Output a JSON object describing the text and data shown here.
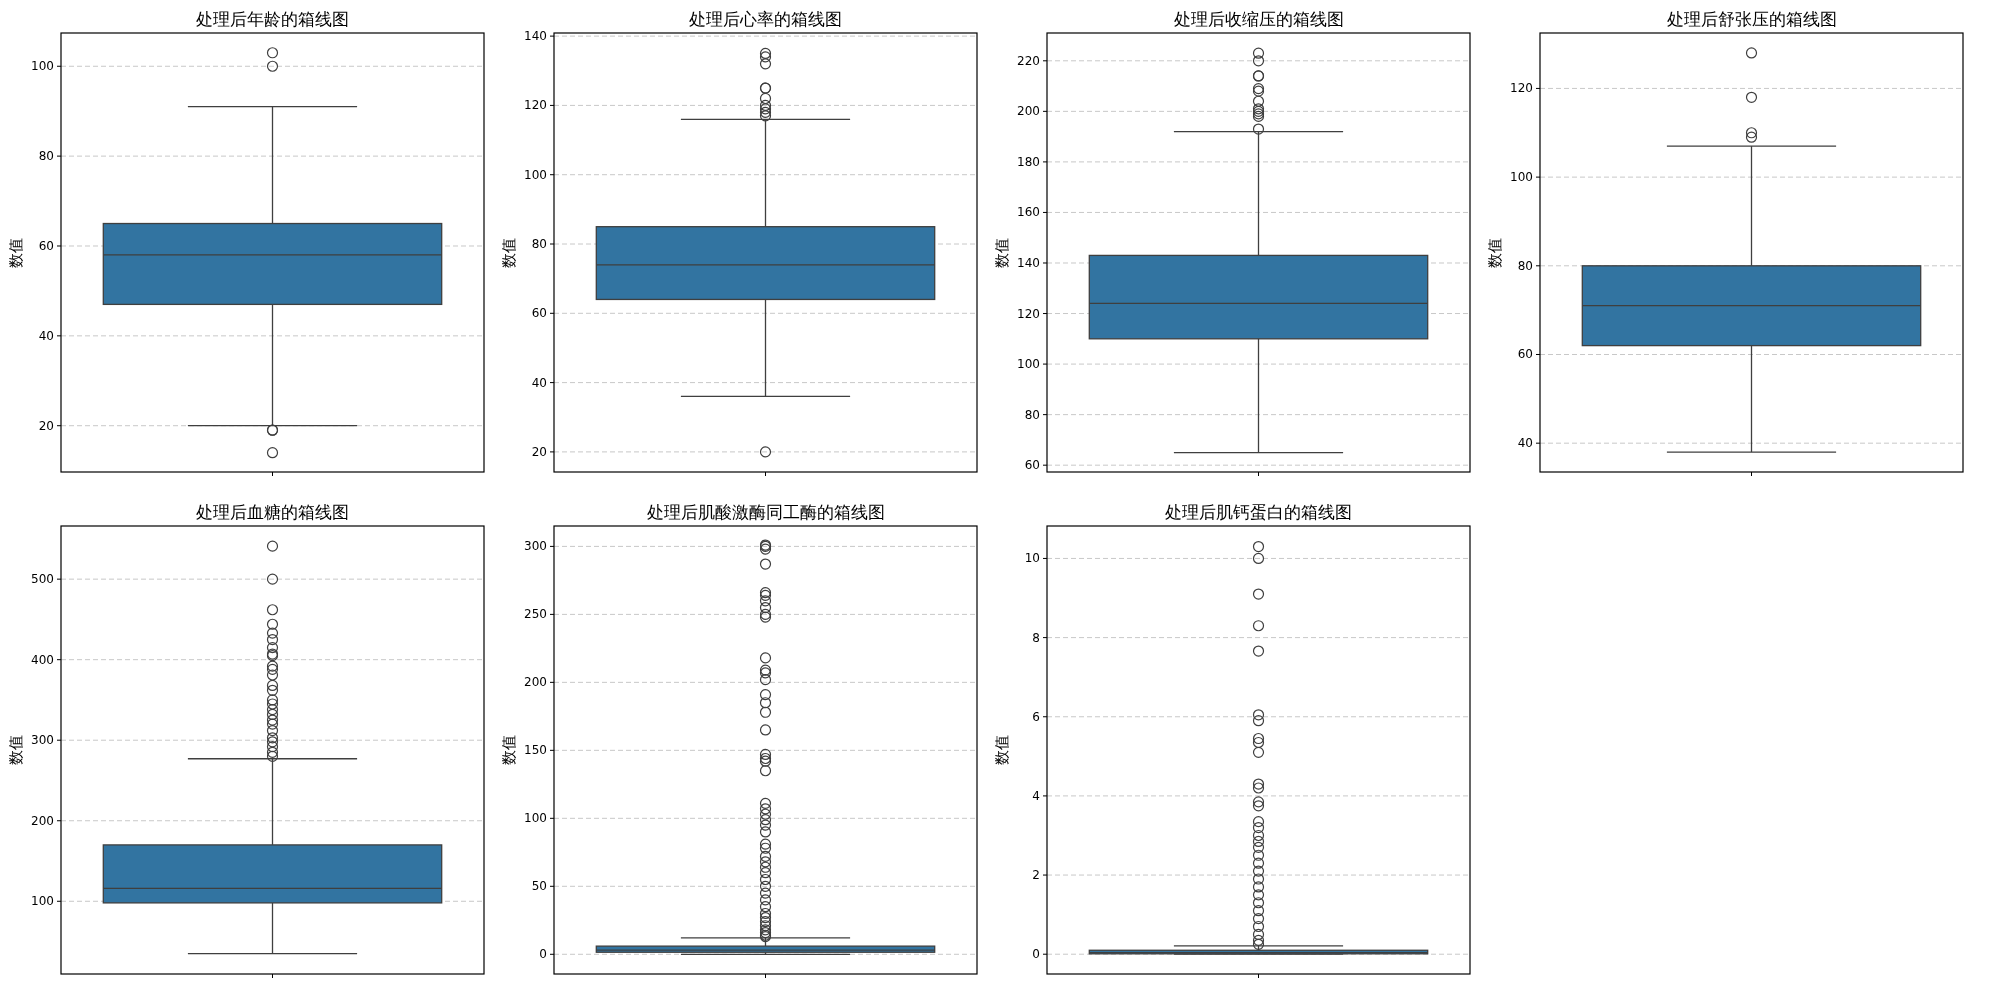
{
  "chart_data": [
    {
      "type": "box",
      "title": "处理后年龄的箱线图",
      "ylabel": "数值",
      "categories": [
        null
      ],
      "grid": "y",
      "ylim": [
        9.7,
        107.4
      ],
      "yticks": [
        20,
        40,
        60,
        80,
        100
      ],
      "boxes": [
        {
          "low": 20,
          "q1": 47,
          "median": 58,
          "q3": 65,
          "high": 91,
          "outliers": [
            103,
            100,
            19,
            19,
            14
          ]
        }
      ]
    },
    {
      "type": "box",
      "title": "处理后心率的箱线图",
      "ylabel": "数值",
      "categories": [
        null
      ],
      "grid": "y",
      "ylim": [
        14.2,
        140.9
      ],
      "yticks": [
        20,
        40,
        60,
        80,
        100,
        120,
        140
      ],
      "boxes": [
        {
          "low": 36,
          "q1": 64,
          "median": 74,
          "q3": 85,
          "high": 116,
          "outliers": [
            135,
            134,
            132,
            125,
            125,
            122,
            120,
            119,
            118,
            117,
            20
          ]
        }
      ]
    },
    {
      "type": "box",
      "title": "处理后收缩压的箱线图",
      "ylabel": "数值",
      "categories": [
        null
      ],
      "grid": "y",
      "ylim": [
        57.3,
        231
      ],
      "yticks": [
        60,
        80,
        100,
        120,
        140,
        160,
        180,
        200,
        220
      ],
      "boxes": [
        {
          "low": 65,
          "q1": 110,
          "median": 124,
          "q3": 143,
          "high": 192,
          "outliers": [
            223,
            220,
            214,
            214,
            209,
            208,
            204,
            201,
            200,
            199,
            198,
            193
          ]
        }
      ]
    },
    {
      "type": "box",
      "title": "处理后舒张压的箱线图",
      "ylabel": "数值",
      "categories": [
        null
      ],
      "grid": "y",
      "ylim": [
        33.5,
        132.5
      ],
      "yticks": [
        40,
        60,
        80,
        100,
        120
      ],
      "boxes": [
        {
          "low": 38,
          "q1": 62,
          "median": 71,
          "q3": 80,
          "high": 107,
          "outliers": [
            128,
            118,
            110,
            109
          ]
        }
      ]
    },
    {
      "type": "box",
      "title": "处理后血糖的箱线图",
      "ylabel": "数值",
      "categories": [
        null
      ],
      "grid": "y",
      "ylim": [
        9.7,
        566
      ],
      "yticks": [
        100,
        200,
        300,
        400,
        500
      ],
      "boxes": [
        {
          "low": 35,
          "q1": 98,
          "median": 116,
          "q3": 170,
          "high": 277,
          "outliers": [
            541,
            500,
            462,
            444,
            433,
            425,
            415,
            407,
            405,
            392,
            388,
            381,
            368,
            362,
            350,
            345,
            338,
            332,
            325,
            320,
            312,
            303,
            298,
            292,
            285,
            280
          ]
        }
      ]
    },
    {
      "type": "box",
      "title": "处理后肌酸激酶同工酶的箱线图",
      "ylabel": "数值",
      "categories": [
        null
      ],
      "grid": "y",
      "ylim": [
        -14.5,
        315
      ],
      "yticks": [
        0,
        50,
        100,
        150,
        200,
        250,
        300
      ],
      "boxes": [
        {
          "low": 0,
          "q1": 1.5,
          "median": 3,
          "q3": 6,
          "high": 12,
          "outliers": [
            301,
            300,
            298,
            287,
            266,
            264,
            260,
            255,
            250,
            248,
            218,
            209,
            207,
            202,
            191,
            185,
            178,
            165,
            147,
            144,
            142,
            135,
            111,
            107,
            103,
            99,
            95,
            90,
            81,
            78,
            72,
            68,
            64,
            60,
            55,
            50,
            45,
            40,
            35,
            30,
            27,
            24,
            21,
            18,
            16,
            14,
            13
          ]
        }
      ]
    },
    {
      "type": "box",
      "title": "处理后肌钙蛋白的箱线图",
      "ylabel": "数值",
      "categories": [
        null
      ],
      "grid": "y",
      "ylim": [
        -0.5,
        10.82
      ],
      "yticks": [
        0,
        2,
        4,
        6,
        8,
        10
      ],
      "boxes": [
        {
          "low": 0,
          "q1": 0.01,
          "median": 0.04,
          "q3": 0.1,
          "high": 0.21,
          "outliers": [
            10.3,
            10,
            9.1,
            8.3,
            7.66,
            6.05,
            5.9,
            5.45,
            5.35,
            5.1,
            4.3,
            4.2,
            3.85,
            3.75,
            3.35,
            3.2,
            3.0,
            2.85,
            2.7,
            2.5,
            2.3,
            2.1,
            1.9,
            1.7,
            1.5,
            1.3,
            1.1,
            0.9,
            0.7,
            0.5,
            0.35,
            0.25
          ]
        }
      ]
    }
  ]
}
